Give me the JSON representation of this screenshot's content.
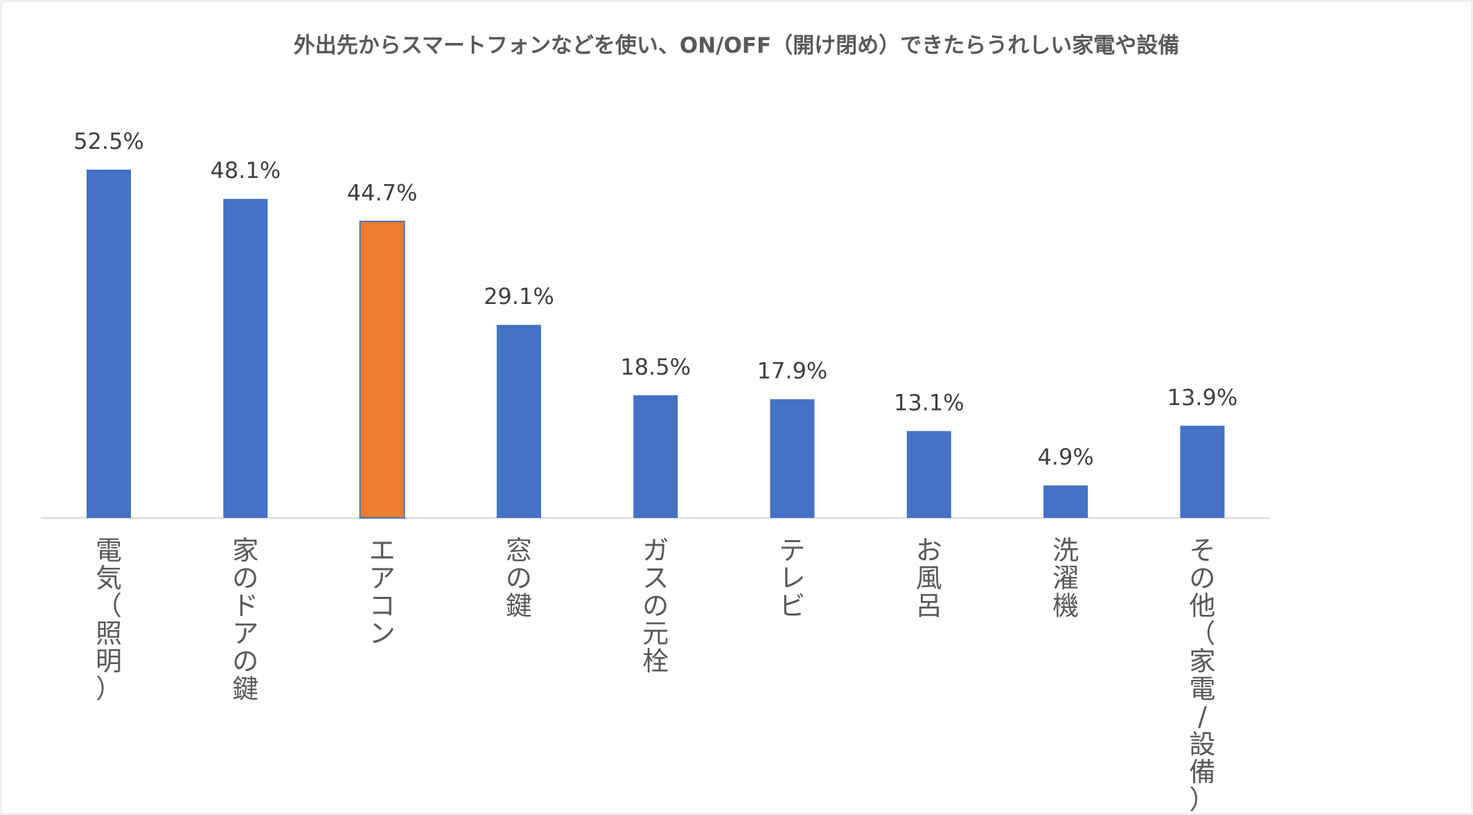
{
  "chart_data": {
    "type": "bar",
    "title": "外出先からスマートフォンなどを使い、ON/OFF（開け閉め）できたらうれしい家電や設備",
    "categories": [
      "電気（照明）",
      "家のドアの鍵",
      "エアコン",
      "窓の鍵",
      "ガスの元栓",
      "テレビ",
      "お風呂",
      "洗濯機",
      "その他（家電/設備）"
    ],
    "values": [
      52.5,
      48.1,
      44.7,
      29.1,
      18.5,
      17.9,
      13.1,
      4.9,
      13.9
    ],
    "value_labels": [
      "52.5%",
      "48.1%",
      "44.7%",
      "29.1%",
      "18.5%",
      "17.9%",
      "13.1%",
      "4.9%",
      "13.9%"
    ],
    "highlight_index": 2,
    "colors": {
      "bar": "#4472C4",
      "highlight": "#ED7D31",
      "axis": "#d9d9d9"
    },
    "xlabel": "",
    "ylabel": "",
    "ylim": [
      0,
      52.5
    ],
    "grid": false,
    "legend": "none",
    "label_orientation": "vertical"
  }
}
